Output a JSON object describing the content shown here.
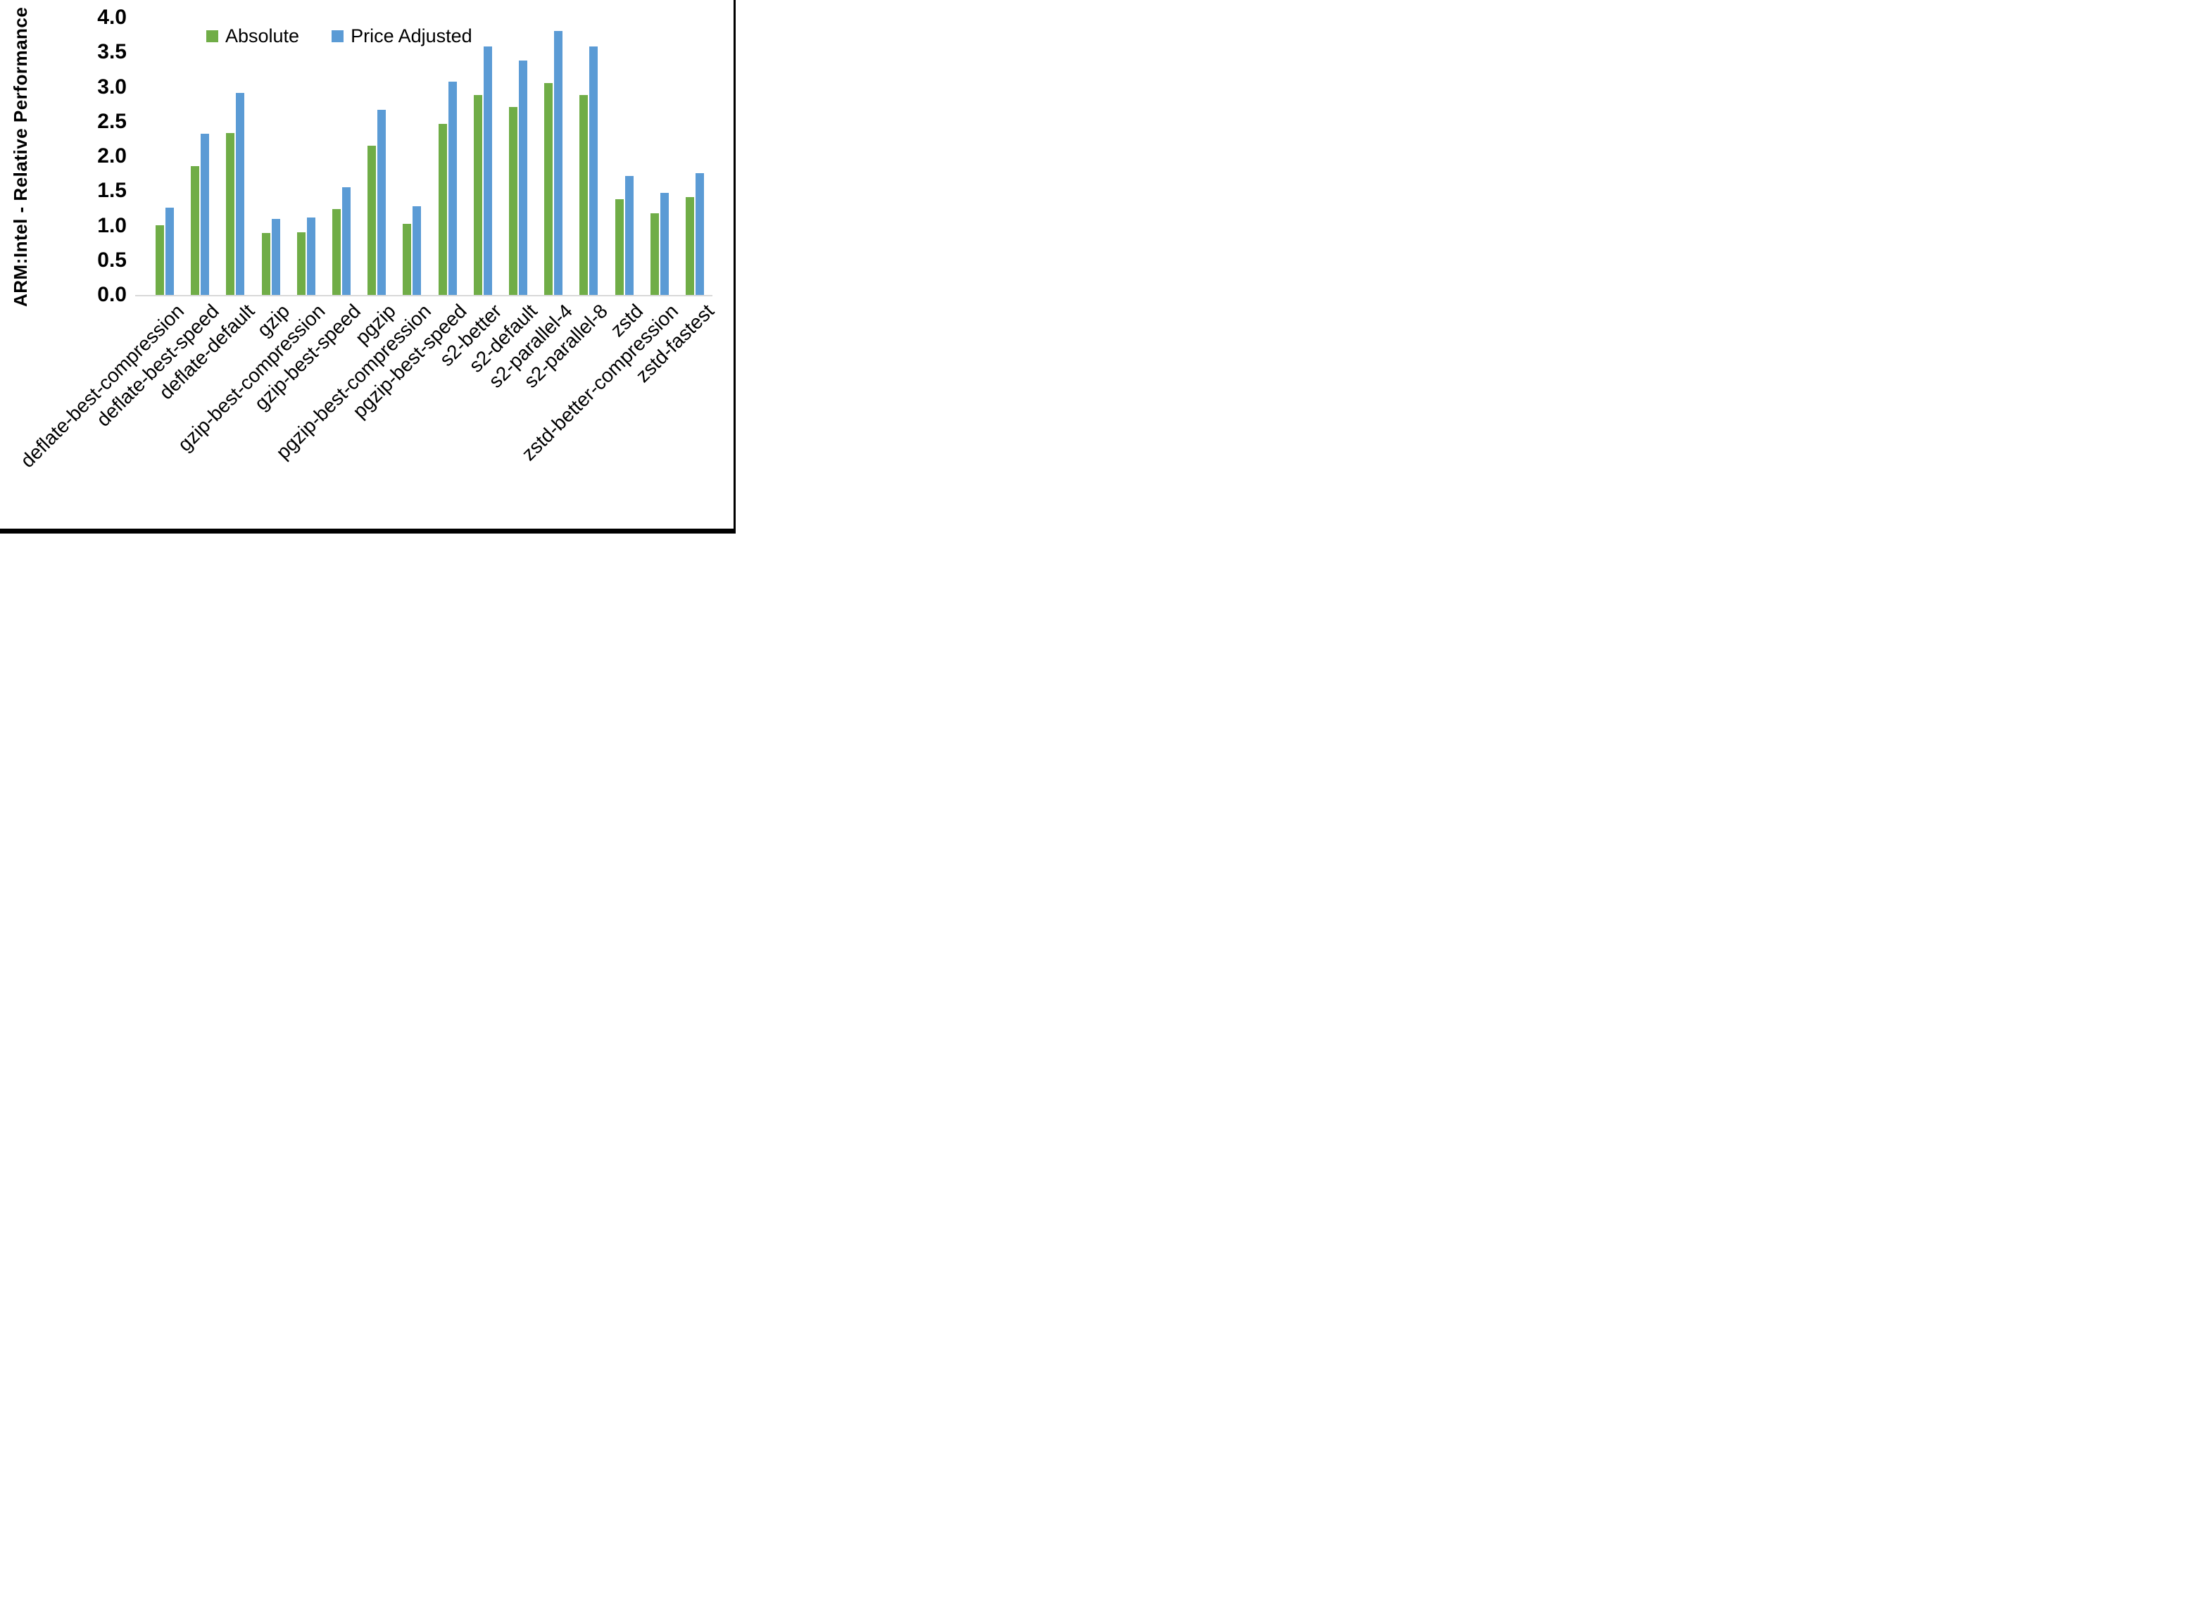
{
  "chart_data": {
    "type": "bar",
    "title": "",
    "xlabel": "",
    "ylabel": "ARM:Intel - Relative Performance",
    "ylim": [
      0.0,
      4.0
    ],
    "ytick_labels": [
      "0.0",
      "0.5",
      "1.0",
      "1.5",
      "2.0",
      "2.5",
      "3.0",
      "3.5",
      "4.0"
    ],
    "grid": false,
    "legend_position": "top-center",
    "categories": [
      "deflate-best-compression",
      "deflate-best-speed",
      "deflate-default",
      "gzip",
      "gzip-best-compression",
      "gzip-best-speed",
      "pgzip",
      "pgzip-best-compression",
      "pgzip-best-speed",
      "s2-better",
      "s2-default",
      "s2-parallel-4",
      "s2-parallel-8",
      "zstd",
      "zstd-better-compression",
      "zstd-fastest"
    ],
    "series": [
      {
        "name": "Absolute",
        "color": "#70AD47",
        "values": [
          1.01,
          1.86,
          2.33,
          0.89,
          0.9,
          1.24,
          2.15,
          1.03,
          2.47,
          2.88,
          2.71,
          3.06,
          2.88,
          1.38,
          1.18,
          1.41
        ]
      },
      {
        "name": "Price Adjusted",
        "color": "#5B9BD5",
        "values": [
          1.26,
          2.32,
          2.91,
          1.1,
          1.12,
          1.55,
          2.67,
          1.28,
          3.08,
          3.58,
          3.38,
          3.81,
          3.58,
          1.72,
          1.47,
          1.76
        ]
      }
    ]
  },
  "colors": {
    "background": "#FFFFFF",
    "axis_line": "#D9D9D9",
    "text": "#000000",
    "border": "#000000"
  }
}
